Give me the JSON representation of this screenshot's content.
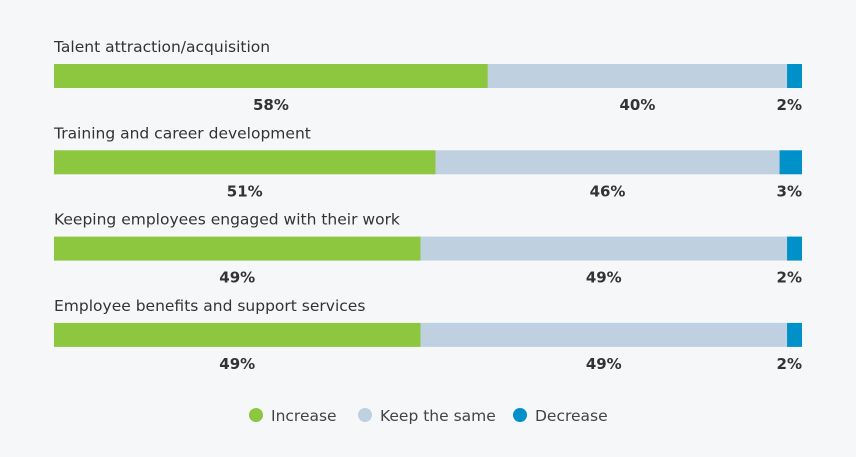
{
  "chart_data": {
    "type": "bar",
    "orientation": "horizontal-stacked-100",
    "categories": [
      "Talent attraction/acquisition",
      "Training and career development",
      "Keeping employees engaged with their work",
      "Employee benefits and support services"
    ],
    "series": [
      {
        "name": "Increase",
        "color": "#8dc63f",
        "values": [
          58,
          51,
          49,
          49
        ]
      },
      {
        "name": "Keep the same",
        "color": "#bfd0e0",
        "values": [
          40,
          46,
          49,
          49
        ]
      },
      {
        "name": "Decrease",
        "color": "#0091c9",
        "values": [
          2,
          3,
          2,
          2
        ]
      }
    ],
    "value_suffix": "%",
    "legend_position": "bottom",
    "grid": false
  }
}
